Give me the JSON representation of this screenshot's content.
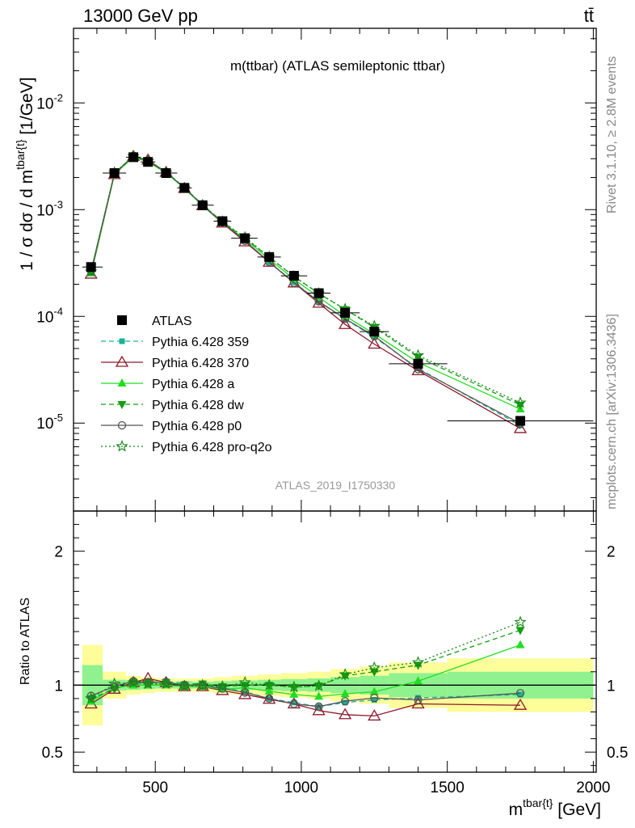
{
  "header": {
    "energy_label": "13000 GeV pp",
    "process_label": "tt̄"
  },
  "side_labels": {
    "rivet": "Rivet 3.1.10, ≥ 2.8M events",
    "mcplots": "mcplots.cern.ch [arXiv:1306.3436]"
  },
  "colors": {
    "atlas": "#000000",
    "p359": "#1ab394",
    "p370": "#8b1a2b",
    "pa": "#22dd22",
    "pdw": "#12a012",
    "pp0": "#555555",
    "pq2o": "#158515",
    "band_inner": "#8ff28f",
    "band_outer": "#fdfd9a"
  },
  "chart_data": [
    {
      "type": "line",
      "title": "m(ttbar) (ATLAS semileptonic ttbar)",
      "watermark": "ATLAS_2019_I1750330",
      "ylabel": "1 / σ dσ / d m^{tbar{t}} [1/GeV]",
      "y_scale": "log",
      "ylim": [
        1.5e-06,
        0.05
      ],
      "xlim": [
        220,
        2010
      ],
      "y_tick_labels": [
        "10^-5",
        "10^-4",
        "10^-3",
        "10^-2"
      ],
      "x": [
        280,
        360,
        425,
        475,
        537,
        600,
        662,
        730,
        807,
        890,
        975,
        1060,
        1150,
        1250,
        1400,
        1750
      ],
      "x_bins": [
        [
          250,
          320
        ],
        [
          320,
          400
        ],
        [
          400,
          450
        ],
        [
          450,
          500
        ],
        [
          500,
          575
        ],
        [
          575,
          625
        ],
        [
          625,
          700
        ],
        [
          700,
          760
        ],
        [
          760,
          850
        ],
        [
          850,
          930
        ],
        [
          930,
          1020
        ],
        [
          1020,
          1100
        ],
        [
          1100,
          1200
        ],
        [
          1200,
          1300
        ],
        [
          1300,
          1500
        ],
        [
          1500,
          2000
        ]
      ],
      "legend_position": "left",
      "series": [
        {
          "name": "ATLAS",
          "key": "atlas",
          "marker": "square",
          "line": "none",
          "values": [
            0.00029,
            0.0022,
            0.0031,
            0.0028,
            0.0022,
            0.0016,
            0.0011,
            0.00078,
            0.00054,
            0.00036,
            0.00024,
            0.000165,
            0.000108,
            7.2e-05,
            3.6e-05,
            1.05e-05
          ]
        },
        {
          "name": "Pythia 6.428 359",
          "key": "p359",
          "marker": "square-small",
          "line": "dashed",
          "values": [
            0.000258,
            0.00215,
            0.00313,
            0.00286,
            0.00226,
            0.00161,
            0.00111,
            0.00076,
            0.00051,
            0.000323,
            0.000209,
            0.000137,
            9.4e-05,
            6.4e-05,
            3.26e-05,
            9.5e-06
          ]
        },
        {
          "name": "Pythia 6.428 370",
          "key": "p370",
          "marker": "triangle-open",
          "line": "solid",
          "values": [
            0.000249,
            0.00213,
            0.00316,
            0.00292,
            0.00224,
            0.00158,
            0.00109,
            0.00075,
            0.0005,
            0.000322,
            0.000206,
            0.000133,
            8.4e-05,
            5.5e-05,
            3.1e-05,
            8.9e-06
          ]
        },
        {
          "name": "Pythia 6.428 a",
          "key": "pa",
          "marker": "triangle",
          "line": "solid",
          "values": [
            0.000255,
            0.00216,
            0.0031,
            0.0028,
            0.00221,
            0.00158,
            0.00109,
            0.00076,
            0.00053,
            0.000344,
            0.000223,
            0.000151,
            0.000101,
            6.85e-05,
            3.7e-05,
            1.35e-05
          ]
        },
        {
          "name": "Pythia 6.428 dw",
          "key": "pdw",
          "marker": "triangle-down",
          "line": "dashed",
          "values": [
            0.000261,
            0.00214,
            0.00315,
            0.00286,
            0.00224,
            0.0016,
            0.00111,
            0.00077,
            0.00054,
            0.00036,
            0.000236,
            0.000164,
            0.000116,
            7.9e-05,
            4.15e-05,
            1.48e-05
          ]
        },
        {
          "name": "Pythia 6.428 p0",
          "key": "pp0",
          "marker": "circle-open",
          "line": "solid",
          "values": [
            0.000267,
            0.00218,
            0.0032,
            0.00286,
            0.00225,
            0.0016,
            0.0011,
            0.00076,
            0.00051,
            0.000323,
            0.000206,
            0.000138,
            9.5e-05,
            6.54e-05,
            3.2e-05,
            9.9e-06
          ]
        },
        {
          "name": "Pythia 6.428 pro-q2o",
          "key": "pq2o",
          "marker": "star",
          "line": "dotted",
          "values": [
            0.000262,
            0.00222,
            0.00315,
            0.00284,
            0.00222,
            0.00159,
            0.0011,
            0.00077,
            0.00055,
            0.00036,
            0.000236,
            0.000164,
            0.000117,
            8.1e-05,
            4.3e-05,
            1.55e-05
          ]
        }
      ]
    },
    {
      "type": "line",
      "title": "",
      "xlabel": "m^{tbar{t}} [GeV]",
      "ylabel": "Ratio to ATLAS",
      "ylim": [
        0.35,
        2.3
      ],
      "xlim": [
        220,
        2010
      ],
      "x_tick_labels": [
        "500",
        "1000",
        "1500",
        "2000"
      ],
      "y_tick_labels": [
        "0.5",
        "1",
        "2"
      ],
      "reference_line": 1,
      "x": [
        280,
        360,
        425,
        475,
        537,
        600,
        662,
        730,
        807,
        890,
        975,
        1060,
        1150,
        1250,
        1400,
        1750
      ],
      "uncertainty_bands": {
        "inner_half_width": [
          0.15,
          0.04,
          0.035,
          0.03,
          0.025,
          0.03,
          0.025,
          0.03,
          0.035,
          0.04,
          0.045,
          0.05,
          0.06,
          0.07,
          0.09,
          0.1
        ],
        "outer_half_width": [
          0.3,
          0.1,
          0.07,
          0.06,
          0.05,
          0.05,
          0.05,
          0.06,
          0.07,
          0.08,
          0.09,
          0.1,
          0.12,
          0.14,
          0.17,
          0.2
        ]
      },
      "series": [
        {
          "name": "Pythia 6.428 359",
          "key": "p359",
          "values": [
            0.89,
            0.98,
            1.01,
            1.02,
            1.03,
            1.01,
            1.01,
            0.98,
            0.95,
            0.9,
            0.87,
            0.84,
            0.87,
            0.89,
            0.905,
            0.93
          ]
        },
        {
          "name": "Pythia 6.428 370",
          "key": "p370",
          "values": [
            0.86,
            0.97,
            1.02,
            1.05,
            1.02,
            0.99,
            0.99,
            0.96,
            0.93,
            0.895,
            0.86,
            0.81,
            0.78,
            0.77,
            0.86,
            0.85
          ]
        },
        {
          "name": "Pythia 6.428 a",
          "key": "pa",
          "values": [
            0.88,
            0.98,
            1.0,
            1.0,
            1.0,
            0.99,
            0.99,
            0.97,
            0.98,
            0.955,
            0.93,
            0.915,
            0.935,
            0.95,
            1.03,
            1.3
          ]
        },
        {
          "name": "Pythia 6.428 dw",
          "key": "pdw",
          "values": [
            0.9,
            0.97,
            1.02,
            1.02,
            1.02,
            1.0,
            1.01,
            0.99,
            1.0,
            1.0,
            0.985,
            0.995,
            1.07,
            1.1,
            1.15,
            1.41
          ]
        },
        {
          "name": "Pythia 6.428 p0",
          "key": "pp0",
          "values": [
            0.92,
            0.99,
            1.03,
            1.02,
            1.02,
            1.0,
            1.0,
            0.975,
            0.945,
            0.9,
            0.86,
            0.84,
            0.88,
            0.905,
            0.89,
            0.94
          ]
        },
        {
          "name": "Pythia 6.428 pro-q2o",
          "key": "pq2o",
          "values": [
            0.9,
            1.01,
            1.02,
            1.01,
            1.01,
            0.99,
            1.0,
            0.99,
            1.02,
            1.0,
            0.985,
            0.995,
            1.08,
            1.13,
            1.17,
            1.47
          ]
        }
      ]
    }
  ]
}
